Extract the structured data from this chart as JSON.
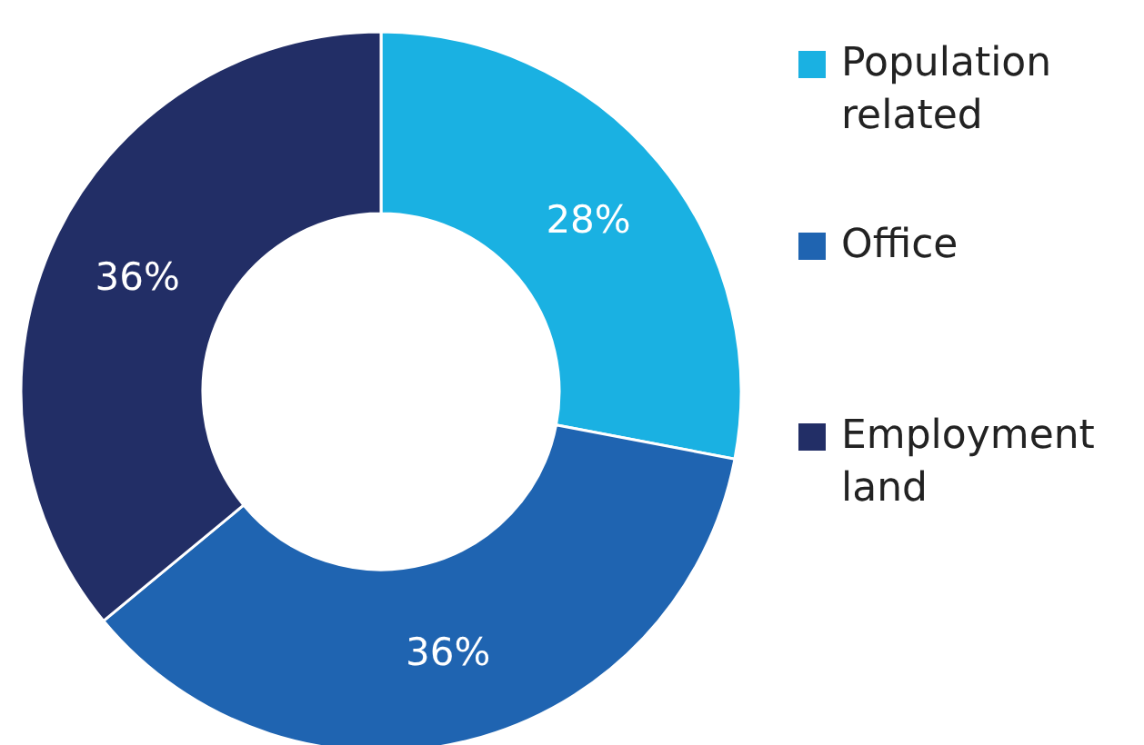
{
  "chart_data": {
    "type": "donut",
    "categories": [
      "Population related",
      "Office",
      "Employment land"
    ],
    "values": [
      28,
      36,
      36
    ],
    "colors": [
      "#1ab1e2",
      "#1f64b1",
      "#222e66"
    ],
    "value_labels": [
      "28%",
      "36%",
      "36%"
    ],
    "legend": "right"
  }
}
